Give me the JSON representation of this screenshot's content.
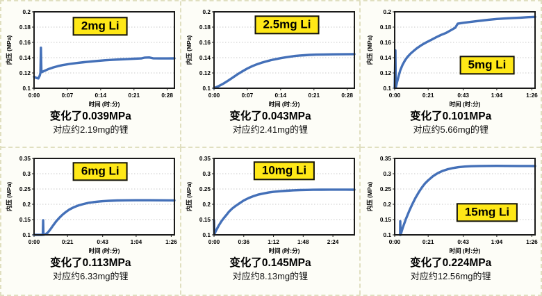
{
  "styles": {
    "curve_color": "#4470b8",
    "badge_bg": "#ffe817",
    "grid_color": "#c9c9c9",
    "plot_border": "#1a1a1a"
  },
  "axis": {
    "y_label": "内压 (MPa)",
    "x_label": "时间 (时:分)"
  },
  "chart_data": [
    {
      "type": "line",
      "label": "2mg Li",
      "label_pos": {
        "x": 0.47,
        "y": 0.19
      },
      "ylim": [
        0.1,
        0.2
      ],
      "y_ticks": [
        {
          "v": 0.1,
          "l": "0.1"
        },
        {
          "v": 0.12,
          "l": "0.12"
        },
        {
          "v": 0.14,
          "l": "0.14"
        },
        {
          "v": 0.16,
          "l": "0.16"
        },
        {
          "v": 0.18,
          "l": "0.18"
        },
        {
          "v": 0.2,
          "l": "0.2"
        }
      ],
      "x_max": 29.5,
      "x_ticks": [
        {
          "t": 0,
          "l": "0:00"
        },
        {
          "t": 7,
          "l": "0:07"
        },
        {
          "t": 14,
          "l": "0:14"
        },
        {
          "t": 21,
          "l": "0:21"
        },
        {
          "t": 28,
          "l": "0:28"
        }
      ],
      "points": [
        [
          0,
          0.115
        ],
        [
          0.5,
          0.1135
        ],
        [
          0.9,
          0.1128
        ],
        [
          1.2,
          0.1165
        ],
        [
          1.35,
          0.1205
        ],
        [
          1.45,
          0.153
        ],
        [
          1.55,
          0.121
        ],
        [
          2.2,
          0.1228
        ],
        [
          3,
          0.125
        ],
        [
          4,
          0.1272
        ],
        [
          5,
          0.1289
        ],
        [
          6,
          0.1303
        ],
        [
          7.5,
          0.1318
        ],
        [
          9,
          0.133
        ],
        [
          10.5,
          0.1341
        ],
        [
          12,
          0.135
        ],
        [
          13.5,
          0.1358
        ],
        [
          15,
          0.1366
        ],
        [
          16.5,
          0.1372
        ],
        [
          18,
          0.1377
        ],
        [
          19.5,
          0.1381
        ],
        [
          21,
          0.1386
        ],
        [
          22.5,
          0.139
        ],
        [
          23.3,
          0.1401
        ],
        [
          24.2,
          0.1403
        ],
        [
          25,
          0.1392
        ],
        [
          26.5,
          0.139
        ],
        [
          28,
          0.139
        ],
        [
          29.5,
          0.1391
        ]
      ],
      "caption_change": "变化了0.039MPa",
      "caption_li": "对应约2.19mg的锂"
    },
    {
      "type": "line",
      "label": "2.5mg Li",
      "label_pos": {
        "x": 0.52,
        "y": 0.17
      },
      "ylim": [
        0.1,
        0.2
      ],
      "y_ticks": [
        {
          "v": 0.1,
          "l": "0.1"
        },
        {
          "v": 0.12,
          "l": "0.12"
        },
        {
          "v": 0.14,
          "l": "0.14"
        },
        {
          "v": 0.16,
          "l": "0.16"
        },
        {
          "v": 0.18,
          "l": "0.18"
        },
        {
          "v": 0.2,
          "l": "0.2"
        }
      ],
      "x_max": 29.5,
      "x_ticks": [
        {
          "t": 0,
          "l": "0:00"
        },
        {
          "t": 7,
          "l": "0:07"
        },
        {
          "t": 14,
          "l": "0:14"
        },
        {
          "t": 21,
          "l": "0:21"
        },
        {
          "t": 28,
          "l": "0:28"
        }
      ],
      "points": [
        [
          0,
          0.1002
        ],
        [
          1,
          0.1028
        ],
        [
          2,
          0.1062
        ],
        [
          3,
          0.1101
        ],
        [
          4,
          0.1143
        ],
        [
          5,
          0.1185
        ],
        [
          6,
          0.1223
        ],
        [
          7,
          0.1258
        ],
        [
          8,
          0.1288
        ],
        [
          9,
          0.1313
        ],
        [
          10,
          0.1334
        ],
        [
          11,
          0.1352
        ],
        [
          12,
          0.1368
        ],
        [
          13,
          0.1381
        ],
        [
          14,
          0.1394
        ],
        [
          15,
          0.1404
        ],
        [
          16,
          0.1413
        ],
        [
          17,
          0.1422
        ],
        [
          18,
          0.1428
        ],
        [
          19,
          0.1432
        ],
        [
          20,
          0.1436
        ],
        [
          21.5,
          0.144
        ],
        [
          23,
          0.1442
        ],
        [
          25,
          0.1444
        ],
        [
          27,
          0.1445
        ],
        [
          29.5,
          0.1446
        ]
      ],
      "caption_change": "变化了0.043MPa",
      "caption_li": "对应约2.41mg的锂"
    },
    {
      "type": "line",
      "label": "5mg Li",
      "label_pos": {
        "x": 0.66,
        "y": 0.7
      },
      "ylim": [
        0.1,
        0.2
      ],
      "y_ticks": [
        {
          "v": 0.1,
          "l": "0.1"
        },
        {
          "v": 0.12,
          "l": "0.12"
        },
        {
          "v": 0.14,
          "l": "0.14"
        },
        {
          "v": 0.16,
          "l": "0.16"
        },
        {
          "v": 0.18,
          "l": "0.18"
        },
        {
          "v": 0.2,
          "l": "0.2"
        }
      ],
      "x_max": 88,
      "x_ticks": [
        {
          "t": 0,
          "l": "0:00"
        },
        {
          "t": 21,
          "l": "0:21"
        },
        {
          "t": 43,
          "l": "0:43"
        },
        {
          "t": 64,
          "l": "1:04"
        },
        {
          "t": 86,
          "l": "1:26"
        }
      ],
      "points": [
        [
          0,
          0.1005
        ],
        [
          0.45,
          0.1495
        ],
        [
          0.7,
          0.101
        ],
        [
          1.5,
          0.108
        ],
        [
          2.5,
          0.116
        ],
        [
          3.5,
          0.1235
        ],
        [
          5,
          0.131
        ],
        [
          6.5,
          0.1365
        ],
        [
          8,
          0.141
        ],
        [
          10,
          0.1455
        ],
        [
          12,
          0.149
        ],
        [
          14,
          0.1525
        ],
        [
          17,
          0.1567
        ],
        [
          20,
          0.1602
        ],
        [
          23,
          0.1635
        ],
        [
          26,
          0.1667
        ],
        [
          29,
          0.1697
        ],
        [
          32,
          0.1722
        ],
        [
          35,
          0.1756
        ],
        [
          38,
          0.1792
        ],
        [
          39.5,
          0.1845
        ],
        [
          43,
          0.1856
        ],
        [
          47,
          0.1866
        ],
        [
          51,
          0.1876
        ],
        [
          55,
          0.1886
        ],
        [
          59,
          0.1896
        ],
        [
          64,
          0.1906
        ],
        [
          69,
          0.1913
        ],
        [
          74,
          0.1919
        ],
        [
          79,
          0.1924
        ],
        [
          83,
          0.1929
        ],
        [
          88,
          0.1934
        ]
      ],
      "caption_change": "变化了0.101MPa",
      "caption_li": "对应约5.66mg的锂"
    },
    {
      "type": "line",
      "label": "6mg Li",
      "label_pos": {
        "x": 0.47,
        "y": 0.17
      },
      "ylim": [
        0.1,
        0.35
      ],
      "y_ticks": [
        {
          "v": 0.1,
          "l": "0.1"
        },
        {
          "v": 0.15,
          "l": "0.15"
        },
        {
          "v": 0.2,
          "l": "0.2"
        },
        {
          "v": 0.25,
          "l": "0.25"
        },
        {
          "v": 0.3,
          "l": "0.3"
        },
        {
          "v": 0.35,
          "l": "0.35"
        }
      ],
      "x_max": 88,
      "x_ticks": [
        {
          "t": 0,
          "l": "0:00"
        },
        {
          "t": 21,
          "l": "0:21"
        },
        {
          "t": 43,
          "l": "0:43"
        },
        {
          "t": 64,
          "l": "1:04"
        },
        {
          "t": 86,
          "l": "1:26"
        }
      ],
      "points": [
        [
          0,
          0.1
        ],
        [
          2,
          0.1
        ],
        [
          4,
          0.1
        ],
        [
          5.5,
          0.1002
        ],
        [
          5.7,
          0.148
        ],
        [
          5.9,
          0.1005
        ],
        [
          7,
          0.1015
        ],
        [
          8.5,
          0.1065
        ],
        [
          10,
          0.1165
        ],
        [
          12,
          0.131
        ],
        [
          14,
          0.145
        ],
        [
          16,
          0.1565
        ],
        [
          18,
          0.1665
        ],
        [
          20,
          0.175
        ],
        [
          22,
          0.1825
        ],
        [
          25,
          0.1905
        ],
        [
          28,
          0.1965
        ],
        [
          31,
          0.201
        ],
        [
          34,
          0.2045
        ],
        [
          37,
          0.2068
        ],
        [
          40,
          0.2086
        ],
        [
          43,
          0.21
        ],
        [
          47,
          0.2114
        ],
        [
          52,
          0.2124
        ],
        [
          58,
          0.213
        ],
        [
          64,
          0.2131
        ],
        [
          72,
          0.2132
        ],
        [
          80,
          0.213
        ],
        [
          88,
          0.2128
        ]
      ],
      "caption_change": "变化了0.113MPa",
      "caption_li": "对应约6.33mg的锂"
    },
    {
      "type": "line",
      "label": "10mg Li",
      "label_pos": {
        "x": 0.5,
        "y": 0.16
      },
      "ylim": [
        0.1,
        0.35
      ],
      "y_ticks": [
        {
          "v": 0.1,
          "l": "0.1"
        },
        {
          "v": 0.15,
          "l": "0.15"
        },
        {
          "v": 0.2,
          "l": "0.2"
        },
        {
          "v": 0.25,
          "l": "0.25"
        },
        {
          "v": 0.3,
          "l": "0.3"
        },
        {
          "v": 0.35,
          "l": "0.35"
        }
      ],
      "x_max": 170,
      "x_ticks": [
        {
          "t": 0,
          "l": "0:00"
        },
        {
          "t": 36,
          "l": "0:36"
        },
        {
          "t": 72,
          "l": "1:12"
        },
        {
          "t": 108,
          "l": "1:48"
        },
        {
          "t": 144,
          "l": "2:24"
        }
      ],
      "points": [
        [
          0,
          0.148
        ],
        [
          0.4,
          0.101
        ],
        [
          1,
          0.106
        ],
        [
          2,
          0.1115
        ],
        [
          4,
          0.122
        ],
        [
          6,
          0.1315
        ],
        [
          9,
          0.1445
        ],
        [
          12,
          0.1555
        ],
        [
          15,
          0.165
        ],
        [
          18,
          0.1755
        ],
        [
          22,
          0.1858
        ],
        [
          26,
          0.1944
        ],
        [
          30,
          0.2016
        ],
        [
          36,
          0.2124
        ],
        [
          42,
          0.2204
        ],
        [
          48,
          0.2268
        ],
        [
          54,
          0.232
        ],
        [
          60,
          0.2355
        ],
        [
          66,
          0.2385
        ],
        [
          72,
          0.2407
        ],
        [
          80,
          0.2427
        ],
        [
          88,
          0.2444
        ],
        [
          96,
          0.2456
        ],
        [
          104,
          0.2465
        ],
        [
          112,
          0.2471
        ],
        [
          120,
          0.2475
        ],
        [
          130,
          0.2478
        ],
        [
          140,
          0.248
        ],
        [
          150,
          0.248
        ],
        [
          160,
          0.248
        ],
        [
          170,
          0.2478
        ]
      ],
      "caption_change": "变化了0.145MPa",
      "caption_li": "对应约8.13mg的锂"
    },
    {
      "type": "line",
      "label": "15mg Li",
      "label_pos": {
        "x": 0.66,
        "y": 0.71
      },
      "ylim": [
        0.1,
        0.35
      ],
      "y_ticks": [
        {
          "v": 0.1,
          "l": "0.1"
        },
        {
          "v": 0.15,
          "l": "0.15"
        },
        {
          "v": 0.2,
          "l": "0.2"
        },
        {
          "v": 0.25,
          "l": "0.25"
        },
        {
          "v": 0.3,
          "l": "0.3"
        },
        {
          "v": 0.35,
          "l": "0.35"
        }
      ],
      "x_max": 88,
      "x_ticks": [
        {
          "t": 0,
          "l": "0:00"
        },
        {
          "t": 21,
          "l": "0:21"
        },
        {
          "t": 43,
          "l": "0:43"
        },
        {
          "t": 64,
          "l": "1:04"
        },
        {
          "t": 86,
          "l": "1:26"
        }
      ],
      "points": [
        [
          3.4,
          0.1
        ],
        [
          3.5,
          0.1445
        ],
        [
          3.7,
          0.1
        ],
        [
          5,
          0.1225
        ],
        [
          7,
          0.1515
        ],
        [
          9,
          0.177
        ],
        [
          11,
          0.2
        ],
        [
          13,
          0.2205
        ],
        [
          15,
          0.2385
        ],
        [
          17,
          0.2545
        ],
        [
          19,
          0.268
        ],
        [
          21,
          0.2785
        ],
        [
          24,
          0.2918
        ],
        [
          27,
          0.3018
        ],
        [
          30,
          0.309
        ],
        [
          33,
          0.3143
        ],
        [
          36,
          0.318
        ],
        [
          40,
          0.3214
        ],
        [
          44,
          0.3234
        ],
        [
          48,
          0.3246
        ],
        [
          53,
          0.3252
        ],
        [
          58,
          0.3255
        ],
        [
          64,
          0.3256
        ],
        [
          70,
          0.3255
        ],
        [
          78,
          0.3253
        ],
        [
          88,
          0.325
        ]
      ],
      "caption_change": "变化了0.224MPa",
      "caption_li": "对应约12.56mg的锂"
    }
  ]
}
